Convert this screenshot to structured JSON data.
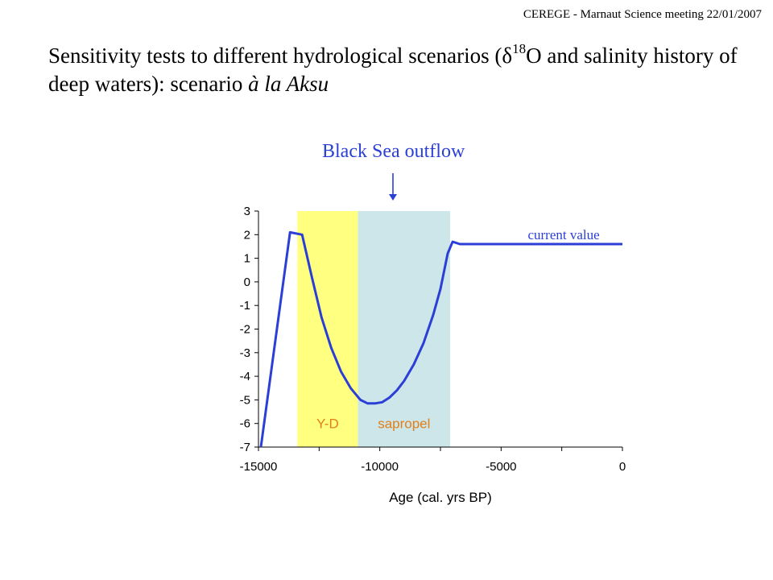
{
  "header": {
    "note": "CEREGE - Marnaut Science meeting 22/01/2007"
  },
  "title": {
    "part1": "Sensitivity tests to different hydrological scenarios (",
    "delta": "δ",
    "sup": "18",
    "part2": "O and salinity history of deep waters): scenario ",
    "italic": "à la Aksu"
  },
  "annotation": {
    "text": "Black Sea outflow"
  },
  "colors": {
    "curve": "#2b3fd6",
    "yd_band": "#ffff80",
    "sapropel_band": "#cde6ea",
    "band_label": "#e07f1a"
  },
  "chart_data": {
    "type": "line",
    "xlabel": "Age (cal. yrs BP)",
    "ylabel": "",
    "xlim": [
      -15000,
      0
    ],
    "ylim": [
      -7,
      3
    ],
    "x_ticks": [
      -15000,
      -10000,
      -5000,
      0
    ],
    "y_ticks": [
      3,
      2,
      1,
      0,
      -1,
      -2,
      -3,
      -4,
      -5,
      -6,
      -7
    ],
    "grid": false,
    "bands": [
      {
        "label": "Y-D",
        "x_start": -13400,
        "x_end": -10900,
        "color": "#ffff80"
      },
      {
        "label": "sapropel",
        "x_start": -10900,
        "x_end": -7100,
        "color": "#cde6ea"
      }
    ],
    "series": [
      {
        "x": [
          -14900,
          -13700,
          -13200,
          -12800,
          -12400,
          -12000,
          -11600,
          -11200,
          -10800,
          -10500,
          -10200,
          -9900,
          -9600,
          -9300,
          -9000,
          -8600,
          -8200,
          -7800,
          -7500,
          -7200,
          -7000,
          -6700,
          -6000,
          -4000,
          -2000,
          0
        ],
        "values": [
          -7,
          2.1,
          2.0,
          0.2,
          -1.5,
          -2.8,
          -3.8,
          -4.5,
          -5.0,
          -5.15,
          -5.15,
          -5.1,
          -4.9,
          -4.6,
          -4.2,
          -3.5,
          -2.6,
          -1.4,
          -0.3,
          1.2,
          1.7,
          1.6,
          1.6,
          1.6,
          1.6,
          1.6
        ]
      }
    ],
    "annotations": [
      {
        "text": "current value",
        "x": -3900,
        "y": 1.8
      }
    ]
  }
}
